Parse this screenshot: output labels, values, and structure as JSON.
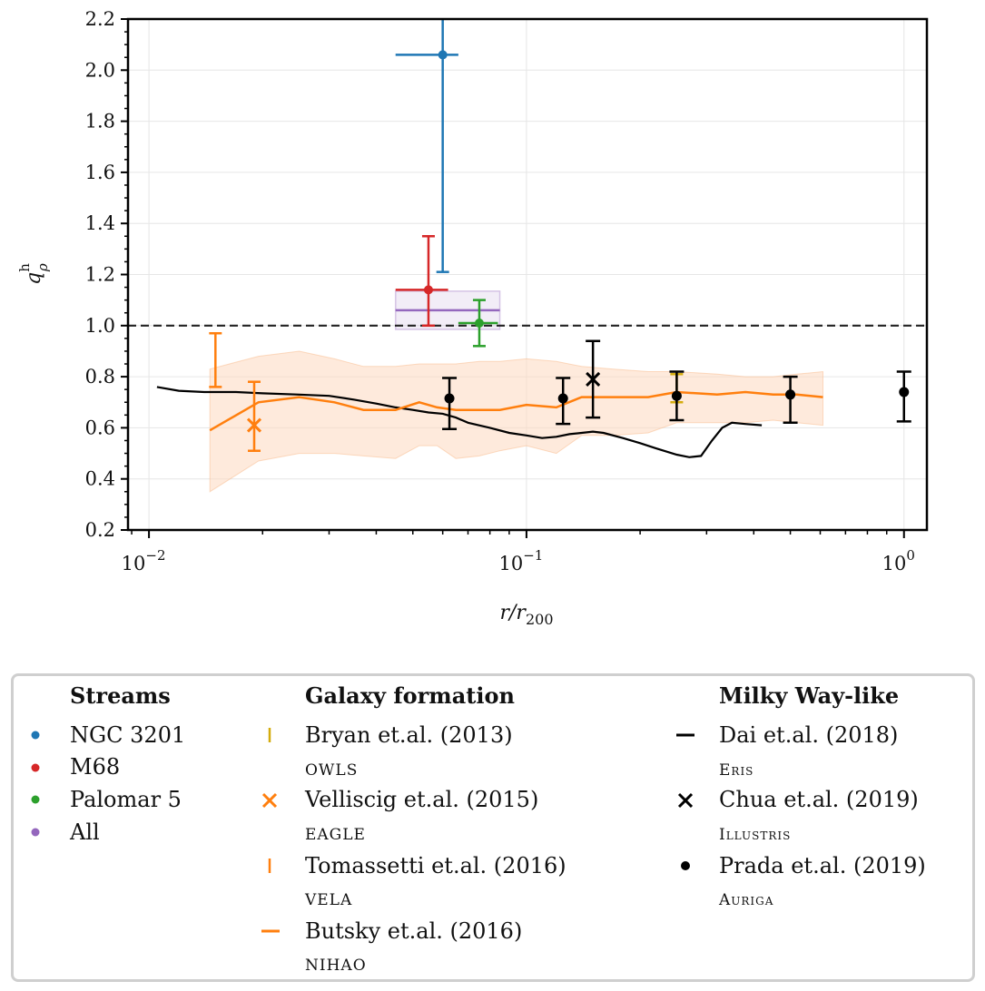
{
  "chart_data": {
    "type": "scatter",
    "title": "",
    "xlabel": "r/r_200",
    "ylabel": "q_ρ^h",
    "xscale": "log",
    "xlim": [
      0.0088,
      1.15
    ],
    "ylim": [
      0.2,
      2.2
    ],
    "y_ticks": [
      "0.2",
      "0.4",
      "0.6",
      "0.8",
      "1.0",
      "1.2",
      "1.4",
      "1.6",
      "1.8",
      "2.0",
      "2.2"
    ],
    "x_ticks": [
      "10^-2",
      "10^-1",
      "10^0"
    ],
    "x_tick_values": [
      0.01,
      0.1,
      1.0
    ],
    "reference_line": {
      "y": 1.0,
      "style": "dashed"
    },
    "colors": {
      "ngc3201": "#1f77b4",
      "m68": "#d62728",
      "palomar5": "#2ca02c",
      "all": "#9467bd",
      "orange": "#ff7f0e",
      "bryan": "#d4ac0d",
      "black": "#000000",
      "band": "#fdd9bf"
    },
    "streams": [
      {
        "name": "NGC 3201",
        "color": "#1f77b4",
        "x": 0.06,
        "y": 2.06,
        "xerr": [
          0.045,
          0.066
        ],
        "yerr": [
          1.21,
          2.2
        ]
      },
      {
        "name": "M68",
        "color": "#d62728",
        "x": 0.055,
        "y": 1.14,
        "xerr": [
          0.045,
          0.062
        ],
        "yerr": [
          1.0,
          1.35
        ]
      },
      {
        "name": "Palomar 5",
        "color": "#2ca02c",
        "x": 0.075,
        "y": 1.01,
        "xerr": [
          0.066,
          0.084
        ],
        "yerr": [
          0.92,
          1.1
        ]
      }
    ],
    "all_band": {
      "x": [
        0.045,
        0.085
      ],
      "y": [
        0.985,
        1.135
      ],
      "y_center": 1.06,
      "color": "#9467bd"
    },
    "bryan_2013": {
      "x": 0.25,
      "y_low": 0.7,
      "y_high": 0.81
    },
    "velliscig_2015": {
      "x": 0.019,
      "y": 0.61,
      "y_low": 0.51,
      "y_high": 0.78
    },
    "tomassetti_2016": {
      "x": 0.015,
      "y_low": 0.76,
      "y_high": 0.97
    },
    "butsky_2016": {
      "x": [
        0.0145,
        0.0195,
        0.025,
        0.031,
        0.037,
        0.045,
        0.052,
        0.058,
        0.065,
        0.075,
        0.085,
        0.1,
        0.12,
        0.14,
        0.17,
        0.21,
        0.25,
        0.32,
        0.38,
        0.45,
        0.52,
        0.61
      ],
      "y": [
        0.59,
        0.7,
        0.72,
        0.7,
        0.67,
        0.67,
        0.7,
        0.68,
        0.67,
        0.67,
        0.67,
        0.69,
        0.68,
        0.72,
        0.72,
        0.72,
        0.74,
        0.73,
        0.74,
        0.73,
        0.73,
        0.72
      ],
      "y_low": [
        0.35,
        0.47,
        0.5,
        0.5,
        0.49,
        0.48,
        0.53,
        0.53,
        0.48,
        0.49,
        0.51,
        0.53,
        0.5,
        0.57,
        0.57,
        0.58,
        0.62,
        0.62,
        0.62,
        0.63,
        0.62,
        0.61
      ],
      "y_high": [
        0.83,
        0.88,
        0.9,
        0.87,
        0.84,
        0.84,
        0.85,
        0.85,
        0.85,
        0.86,
        0.86,
        0.87,
        0.86,
        0.84,
        0.83,
        0.82,
        0.82,
        0.81,
        0.8,
        0.8,
        0.81,
        0.82
      ]
    },
    "dai_2018": {
      "x": [
        0.0105,
        0.012,
        0.014,
        0.017,
        0.02,
        0.025,
        0.03,
        0.035,
        0.04,
        0.045,
        0.05,
        0.055,
        0.06,
        0.065,
        0.07,
        0.08,
        0.09,
        0.1,
        0.11,
        0.12,
        0.13,
        0.14,
        0.15,
        0.16,
        0.18,
        0.2,
        0.22,
        0.25,
        0.27,
        0.29,
        0.31,
        0.33,
        0.35,
        0.38,
        0.42
      ],
      "y": [
        0.76,
        0.745,
        0.74,
        0.74,
        0.735,
        0.73,
        0.725,
        0.71,
        0.695,
        0.68,
        0.67,
        0.66,
        0.655,
        0.64,
        0.62,
        0.6,
        0.58,
        0.57,
        0.56,
        0.565,
        0.575,
        0.58,
        0.585,
        0.58,
        0.56,
        0.54,
        0.52,
        0.495,
        0.485,
        0.49,
        0.55,
        0.6,
        0.62,
        0.615,
        0.61
      ]
    },
    "chua_2019": [
      {
        "x": 0.15,
        "y": 0.79,
        "y_low": 0.64,
        "y_high": 0.94
      }
    ],
    "prada_2019": [
      {
        "x": 0.0625,
        "y": 0.715,
        "y_low": 0.595,
        "y_high": 0.795
      },
      {
        "x": 0.125,
        "y": 0.715,
        "y_low": 0.615,
        "y_high": 0.795
      },
      {
        "x": 0.25,
        "y": 0.725,
        "y_low": 0.63,
        "y_high": 0.82
      },
      {
        "x": 0.5,
        "y": 0.73,
        "y_low": 0.62,
        "y_high": 0.8
      },
      {
        "x": 1.0,
        "y": 0.74,
        "y_low": 0.625,
        "y_high": 0.82
      }
    ]
  },
  "legend": {
    "col1": {
      "heading": "Streams",
      "items": [
        "NGC 3201",
        "M68",
        "Palomar 5",
        "All"
      ]
    },
    "col2": {
      "heading": "Galaxy formation",
      "items": [
        {
          "label": "Bryan et.al. (2013)",
          "sub": "OWLS"
        },
        {
          "label": "Velliscig et.al. (2015)",
          "sub": "EAGLE"
        },
        {
          "label": "Tomassetti et.al. (2016)",
          "sub": "VELA"
        },
        {
          "label": "Butsky et.al. (2016)",
          "sub": "NIHAO"
        }
      ]
    },
    "col3": {
      "heading": "Milky Way-like",
      "items": [
        {
          "label": "Dai et.al. (2018)",
          "sub": "Eris"
        },
        {
          "label": "Chua et.al. (2019)",
          "sub": "Illustris"
        },
        {
          "label": "Prada et.al. (2019)",
          "sub": "Auriga"
        }
      ]
    }
  }
}
